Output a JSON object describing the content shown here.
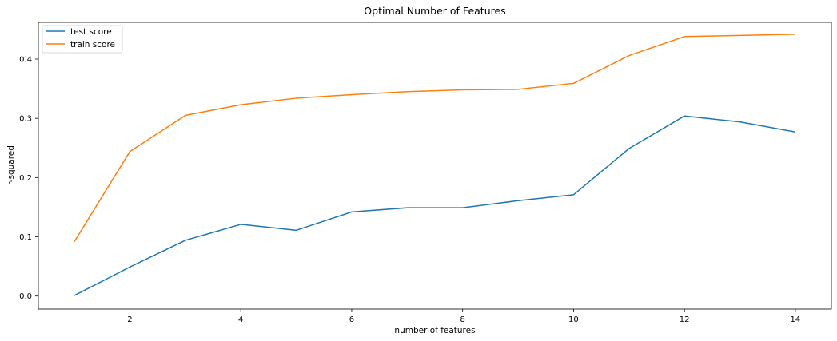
{
  "chart_data": {
    "type": "line",
    "title": "Optimal Number of Features",
    "xlabel": "number of features",
    "ylabel": "r-squared",
    "x": [
      1,
      2,
      3,
      4,
      5,
      6,
      7,
      8,
      9,
      10,
      11,
      12,
      13,
      14
    ],
    "xlim": [
      0.35,
      14.65
    ],
    "ylim": [
      -0.022,
      0.462
    ],
    "xticks": [
      2,
      4,
      6,
      8,
      10,
      12,
      14
    ],
    "yticks": [
      0.0,
      0.1,
      0.2,
      0.3,
      0.4
    ],
    "xtick_labels": [
      "2",
      "4",
      "6",
      "8",
      "10",
      "12",
      "14"
    ],
    "ytick_labels": [
      "0.0",
      "0.1",
      "0.2",
      "0.3",
      "0.4"
    ],
    "grid": false,
    "legend_position": "top-left",
    "series": [
      {
        "name": "test score",
        "color": "#1f77b4",
        "values": [
          0.001,
          0.049,
          0.094,
          0.121,
          0.111,
          0.142,
          0.149,
          0.149,
          0.161,
          0.171,
          0.249,
          0.304,
          0.294,
          0.277
        ]
      },
      {
        "name": "train score",
        "color": "#ff7f0e",
        "values": [
          0.092,
          0.244,
          0.305,
          0.323,
          0.334,
          0.34,
          0.345,
          0.348,
          0.349,
          0.359,
          0.406,
          0.438,
          0.44,
          0.442
        ]
      }
    ]
  }
}
